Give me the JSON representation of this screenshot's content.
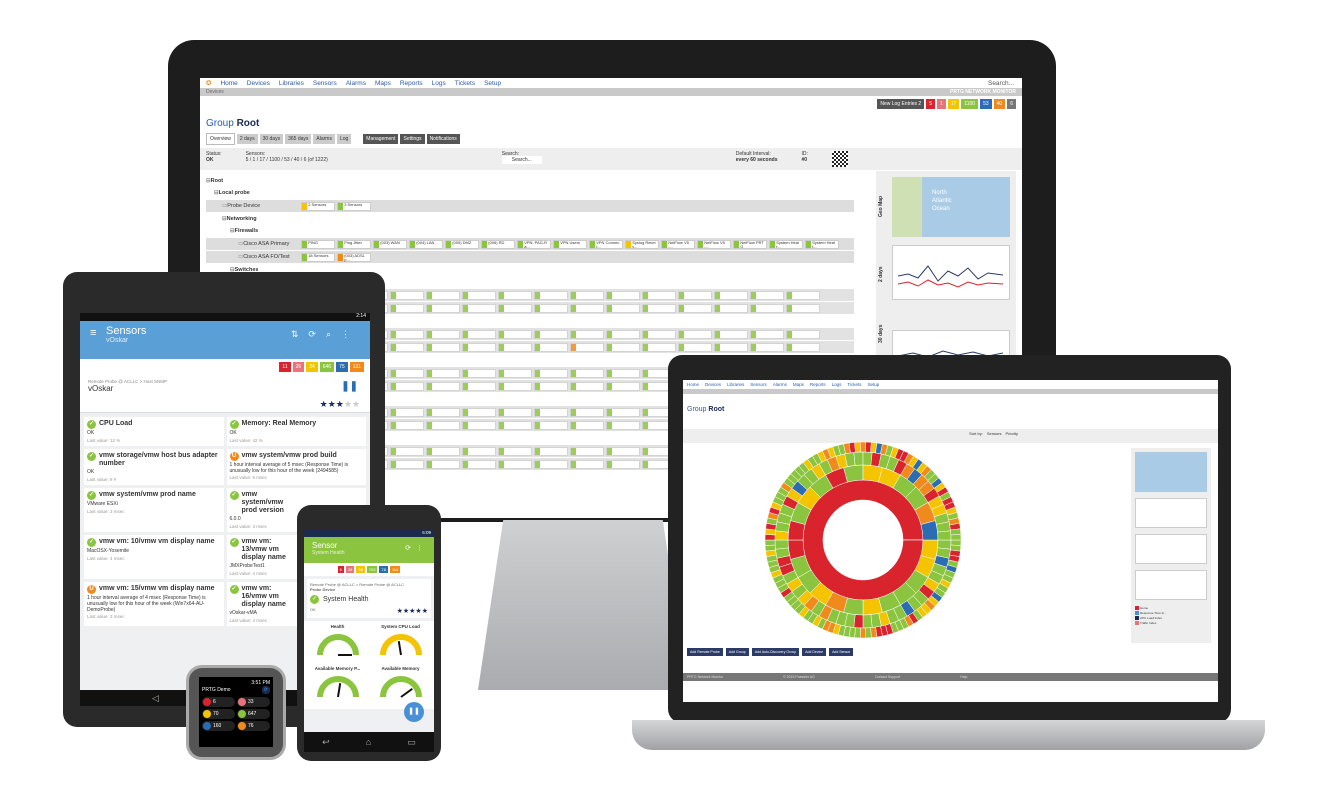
{
  "desktop": {
    "nav": [
      "Home",
      "Devices",
      "Libraries",
      "Sensors",
      "Alarms",
      "Maps",
      "Reports",
      "Logs",
      "Tickets",
      "Setup"
    ],
    "search_placeholder": "Search...",
    "breadcrumb": "Devices",
    "brand": "PRTG NETWORK MONITOR",
    "new_log_entries": "New Log Entries 2",
    "status_counts": [
      {
        "label": "5",
        "color": "#d9232d"
      },
      {
        "label": "1",
        "color": "#e8747b"
      },
      {
        "label": "17",
        "color": "#f5c400"
      },
      {
        "label": "1100",
        "color": "#8bc53f"
      },
      {
        "label": "53",
        "color": "#2b6cb3"
      },
      {
        "label": "40",
        "color": "#f08a1d"
      },
      {
        "label": "6",
        "color": "#777777"
      }
    ],
    "title_prefix": "Group",
    "title": "Root",
    "tabs": [
      "Overview",
      "2 days",
      "30 days",
      "365 days",
      "Alarms",
      "Log"
    ],
    "actions": [
      "Management",
      "Settings",
      "Notifications"
    ],
    "status_label": "Status:",
    "status_value": "OK",
    "sensors_label": "Sensors:",
    "sensors_summary": "5 / 1 / 17 / 1100 / 53 / 40 / 6 (of 1222)",
    "search_label": "Search:",
    "interval_label": "Default Interval:",
    "interval_value": "every 60 seconds",
    "id_label": "ID:",
    "id_value": "#0",
    "tree": [
      {
        "name": "Root",
        "level": 0,
        "type": "group"
      },
      {
        "name": "Local probe",
        "level": 1,
        "type": "group"
      },
      {
        "name": "Probe Device",
        "level": 2,
        "type": "device",
        "chips": [
          {
            "t": "2 Sensors",
            "s": "y"
          },
          {
            "t": "3 Sensors",
            "s": "g"
          }
        ]
      },
      {
        "name": "Networking",
        "level": 2,
        "type": "group"
      },
      {
        "name": "Firewalls",
        "level": 3,
        "type": "group"
      },
      {
        "name": "Cisco ASA Primary",
        "level": 4,
        "type": "device",
        "chips": [
          {
            "t": "PING",
            "s": "g"
          },
          {
            "t": "Ping Jitter",
            "s": "g"
          },
          {
            "t": "(003) WAN",
            "s": "g"
          },
          {
            "t": "(004) LAN",
            "s": "g"
          },
          {
            "t": "(005) DMZ",
            "s": "g"
          },
          {
            "t": "(006) RD",
            "s": "g"
          },
          {
            "t": "VPN: PAG-Ra...",
            "s": "g"
          },
          {
            "t": "VPN Users",
            "s": "g"
          },
          {
            "t": "VPN Connect...",
            "s": "g"
          },
          {
            "t": "Syslog Receiv...",
            "s": "y"
          },
          {
            "t": "NetFlow V5 -...",
            "s": "g"
          },
          {
            "t": "NetFlow V5 -...",
            "s": "g"
          },
          {
            "t": "NetFlow PRTG",
            "s": "g"
          },
          {
            "t": "System Healt...",
            "s": "g"
          },
          {
            "t": "System Healt...",
            "s": "g"
          }
        ]
      },
      {
        "name": "Cisco ASA FO/Test",
        "level": 4,
        "type": "device",
        "chips": [
          {
            "t": "18 Sensors",
            "s": "g"
          },
          {
            "t": "(003) ADSL p...",
            "s": "o"
          }
        ]
      },
      {
        "name": "Switches",
        "level": 3,
        "type": "group"
      }
    ],
    "side_labels": [
      "Geo Map",
      "2 days",
      "30 days"
    ],
    "map_labels": [
      "North",
      "Atlantic",
      "Ocean"
    ]
  },
  "tablet": {
    "time": "2:14",
    "title": "Sensors",
    "subtitle": "vOskar",
    "badges": [
      {
        "label": "11",
        "color": "#d9232d"
      },
      {
        "label": "26",
        "color": "#e8747b"
      },
      {
        "label": "34",
        "color": "#f5c400"
      },
      {
        "label": "646",
        "color": "#8bc53f"
      },
      {
        "label": "75",
        "color": "#2b6cb3"
      },
      {
        "label": "131",
        "color": "#f08a1d"
      }
    ],
    "path": "Remote Probe @ ACLLC  > Host SNMP",
    "device": "vOskar",
    "priority": 3,
    "cards": [
      {
        "title": "CPU Load",
        "status": "ok",
        "text": "OK",
        "last": "Last value: 12 %"
      },
      {
        "title": "Memory: Real Memory",
        "status": "ok",
        "text": "OK",
        "last": "Last value: 42 %"
      },
      {
        "title": "vmw storage/vmw host bus adapter number",
        "status": "ok",
        "text": "OK",
        "last": "Last value: 8 #"
      },
      {
        "title": "vmw system/vmw prod build",
        "status": "unusual",
        "text": "1 hour interval average of 5 msec (Response Time) is unusually low for this hour of the week (2494585)",
        "last": "Last value: 5 msec"
      },
      {
        "title": "vmw system/vmw prod name",
        "status": "ok",
        "text": "VMware ESXi",
        "last": "Last value: 3 msec"
      },
      {
        "title": "vmw system/vmw prod version",
        "status": "ok",
        "text": "6.0.0",
        "last": "Last value: 3 msec"
      },
      {
        "title": "vmw vm: 10/vmw vm display name",
        "status": "ok",
        "text": "MacOSX-Yosemite",
        "last": "Last value: 4 msec"
      },
      {
        "title": "vmw vm: 13/vmw vm display name",
        "status": "ok",
        "text": "JMXProbeTest1",
        "last": "Last value: 4 msec"
      },
      {
        "title": "vmw vm: 15/vmw vm display name",
        "status": "unusual",
        "text": "1 hour interval average of 4 msec (Response Time) is unusually low for this hour of the week (Win7x64-AU-DemoProbe)",
        "last": "Last value: 3 msec"
      },
      {
        "title": "vmw vm: 16/vmw vm display name",
        "status": "ok",
        "text": "vOskar-vMA",
        "last": "Last value: 4 msec"
      }
    ]
  },
  "phone": {
    "time": "6:09",
    "title": "Sensor",
    "subtitle": "System Health",
    "badges": [
      {
        "label": "6",
        "color": "#d9232d"
      },
      {
        "label": "38",
        "color": "#e8747b"
      },
      {
        "label": "38",
        "color": "#f5c400"
      },
      {
        "label": "703",
        "color": "#8bc53f"
      },
      {
        "label": "78",
        "color": "#2b6cb3"
      },
      {
        "label": "114",
        "color": "#f08a1d"
      }
    ],
    "path": "Remote Probe @ ACLLC  > Remote Probe @ ACLLC",
    "device": "Probe Device",
    "sensor": "System Health",
    "status": "OK",
    "priority": 5,
    "gauges": [
      {
        "label": "Health",
        "value": 100
      },
      {
        "label": "System CPU Load",
        "value": 45
      },
      {
        "label": "Available Memory P...",
        "value": 55
      },
      {
        "label": "Available Memory",
        "value": 80
      }
    ]
  },
  "watch": {
    "time": "3:51 PM",
    "title": "PRTG Demo",
    "counts": [
      {
        "label": "6",
        "color": "#d9232d"
      },
      {
        "label": "33",
        "color": "#e8747b"
      },
      {
        "label": "70",
        "color": "#f5c400"
      },
      {
        "label": "647",
        "color": "#8bc53f"
      },
      {
        "label": "160",
        "color": "#2b6cb3"
      },
      {
        "label": "76",
        "color": "#f08a1d"
      }
    ]
  },
  "laptop": {
    "nav": [
      "Home",
      "Devices",
      "Libraries",
      "Sensors",
      "Alarms",
      "Maps",
      "Reports",
      "Logs",
      "Tickets",
      "Setup"
    ],
    "title_prefix": "Group",
    "title": "Root",
    "sort_label": "Sort by:",
    "sort_options": [
      "Sensors",
      "Priority"
    ],
    "buttons": [
      "Add Remote Probe",
      "Add Group",
      "Add Auto-Discovery Group",
      "Add Device",
      "Add Sensor"
    ],
    "legend": [
      "Home",
      "Response Time In...",
      "CPU Load Index",
      "Traffic Index"
    ],
    "footer": [
      "PRTG Network Monitor",
      "© 2015 Paessler AG",
      "Contact Support",
      "Help"
    ],
    "sunburst_colors": [
      "#d9232d",
      "#8bc53f",
      "#f5c400",
      "#f08a1d",
      "#2b6cb3"
    ]
  }
}
